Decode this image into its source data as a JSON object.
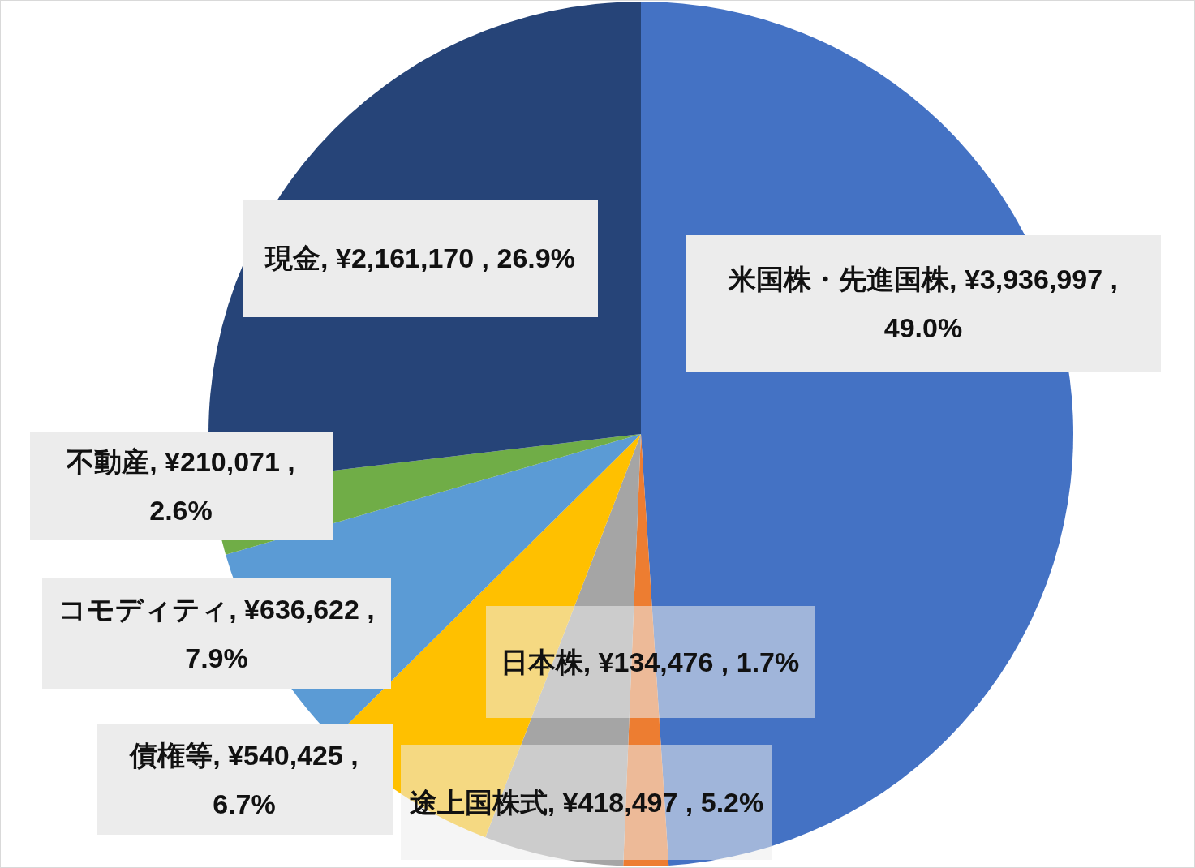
{
  "chart_data": {
    "type": "pie",
    "categories": [
      "米国株・先進国株",
      "日本株",
      "途上国株式",
      "債権等",
      "コモディティ",
      "不動産",
      "現金"
    ],
    "values": [
      3936997,
      134476,
      418497,
      540425,
      636622,
      210071,
      2161170
    ],
    "value_labels": [
      "¥3,936,997 , 49.0%",
      "¥134,476 , 1.7%",
      "¥418,497 , 5.2%",
      "¥540,425 , 6.7%",
      "¥636,622 , 7.9%",
      "¥210,071 , 2.6%",
      "¥2,161,170 , 26.9%"
    ],
    "colors": [
      "#4472c4",
      "#ed7d31",
      "#a5a5a5",
      "#ffc000",
      "#5b9bd5",
      "#70ad47",
      "#264478"
    ],
    "legend": false
  }
}
